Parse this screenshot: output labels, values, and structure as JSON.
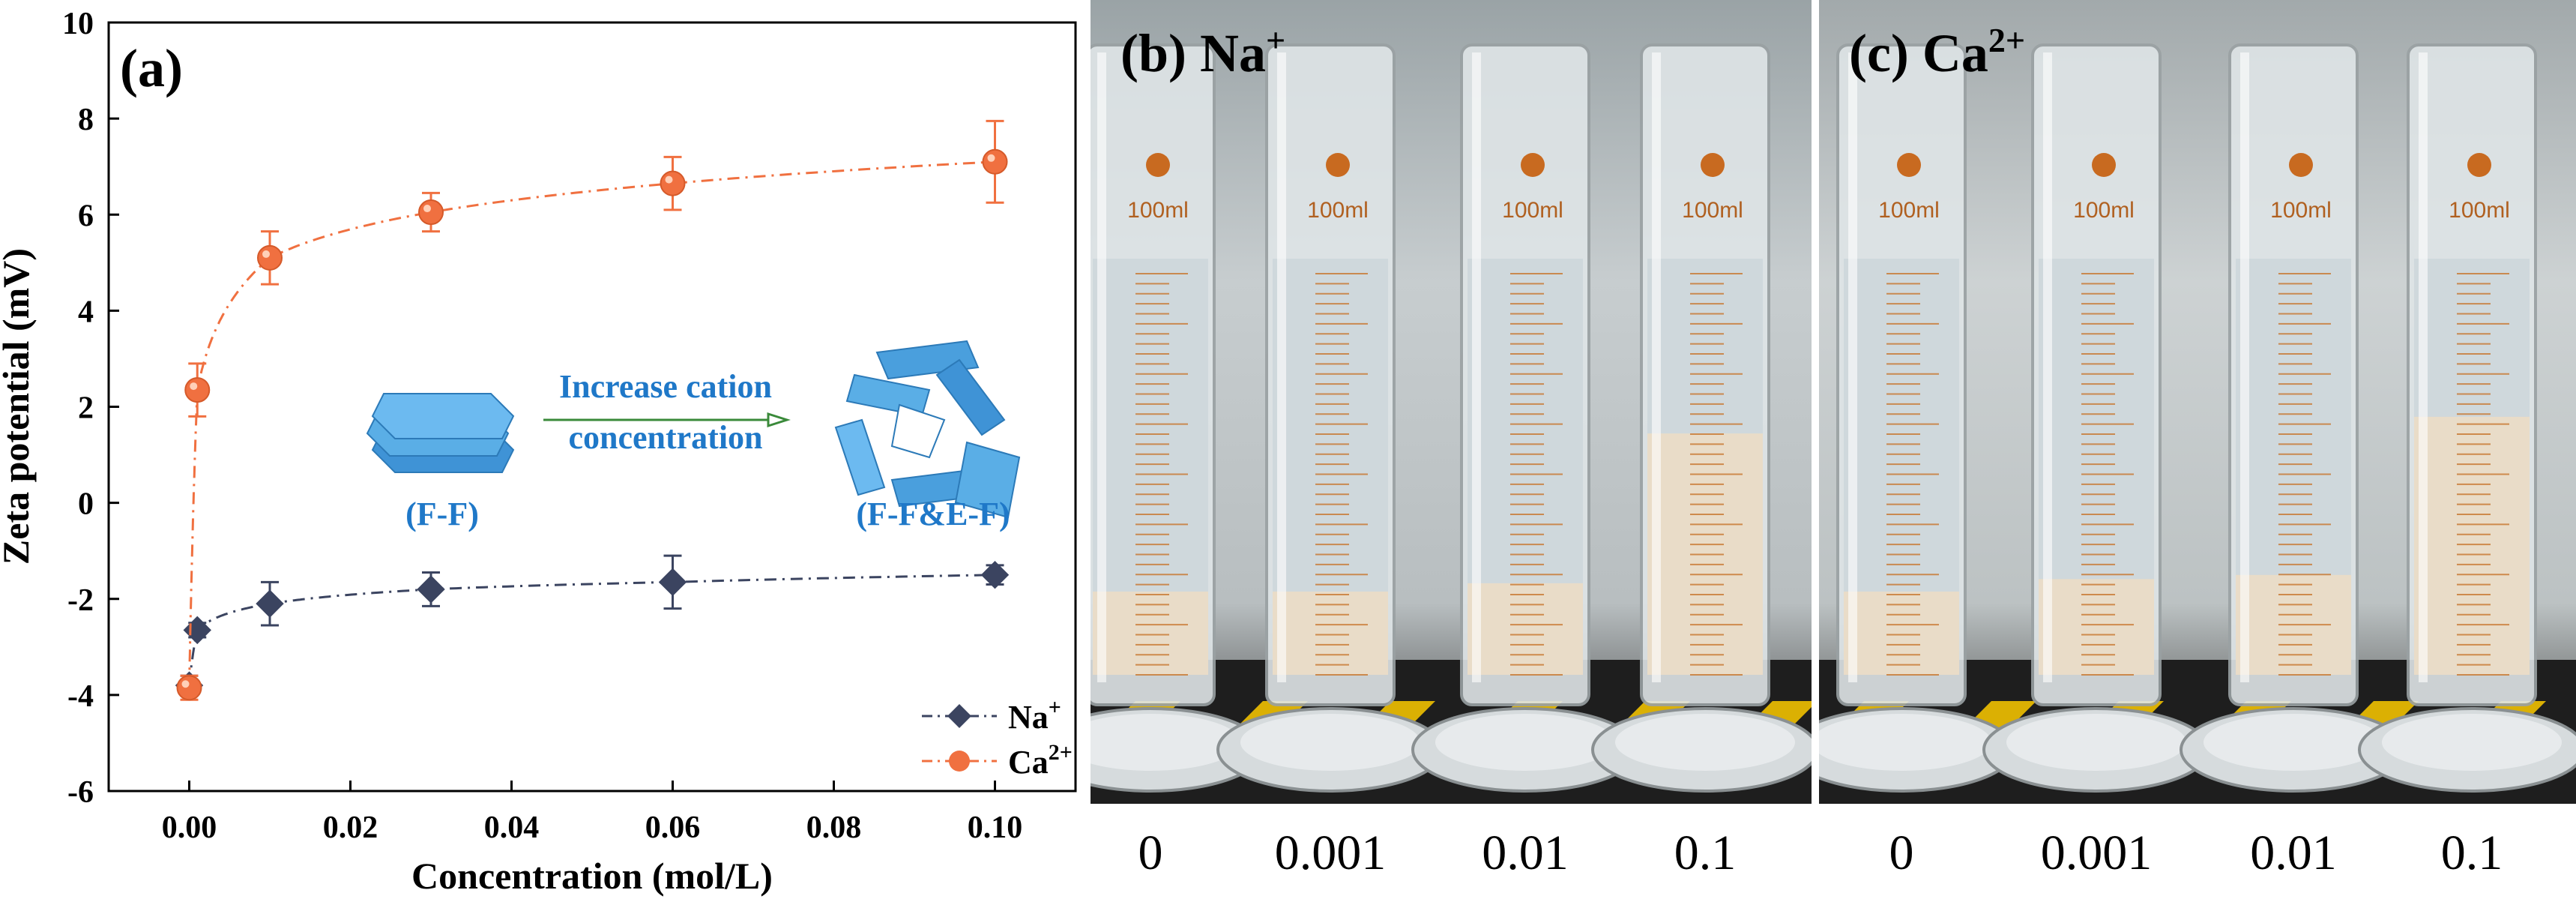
{
  "chart_data": {
    "type": "scatter",
    "panel_label": "(a)",
    "xlabel": "Concentration (mol/L)",
    "ylabel": "Zeta potential (mV)",
    "xlim": [
      -0.01,
      0.11
    ],
    "ylim": [
      -6,
      10
    ],
    "x_ticks": [
      "0.00",
      "0.02",
      "0.04",
      "0.06",
      "0.08",
      "0.10"
    ],
    "y_ticks": [
      "-6",
      "-4",
      "-2",
      "0",
      "2",
      "4",
      "6",
      "8",
      "10"
    ],
    "grid": false,
    "legend_position": "bottom-right",
    "series": [
      {
        "name": "Na⁺",
        "name_base": "Na",
        "name_sup": "+",
        "color": "#3b4460",
        "marker": "diamond",
        "line_style": "dash-dot",
        "x": [
          0,
          0.001,
          0.01,
          0.03,
          0.06,
          0.1
        ],
        "y": [
          -3.8,
          -2.65,
          -2.1,
          -1.8,
          -1.65,
          -1.5
        ],
        "error": [
          0.2,
          0.15,
          0.45,
          0.35,
          0.55,
          0.2
        ]
      },
      {
        "name": "Ca²⁺",
        "name_base": "Ca",
        "name_sup": "2+",
        "color": "#f07040",
        "marker": "circle",
        "line_style": "dash-dot",
        "x": [
          0,
          0.001,
          0.01,
          0.03,
          0.06,
          0.1
        ],
        "y": [
          -3.85,
          2.35,
          5.1,
          6.05,
          6.65,
          7.1
        ],
        "error": [
          0.25,
          0.55,
          0.55,
          0.4,
          0.55,
          0.85
        ]
      }
    ],
    "inset": {
      "arrow_text_line1": "Increase cation",
      "arrow_text_line2": "concentration",
      "left_label": "(F-F)",
      "right_label": "(F-F&E-F)",
      "text_color": "#1f78c8",
      "sheet_color": "#4aa3e0",
      "arrow_color": "#3a8a3a"
    }
  },
  "photo_panels": [
    {
      "tag_base": "(b) Na",
      "tag_sup": "+",
      "concentrations": [
        "0",
        "0.001",
        "0.01",
        "0.1"
      ],
      "cylinder_label": "100ml"
    },
    {
      "tag_base": "(c) Ca",
      "tag_sup": "2+",
      "concentrations": [
        "0",
        "0.001",
        "0.01",
        "0.1"
      ],
      "cylinder_label": "100ml"
    }
  ],
  "colors": {
    "liquid": "#cfd8dc",
    "sediment": "#e9dcc8",
    "graduation": "#c8762e",
    "hazard_yellow": "#f0c000"
  }
}
